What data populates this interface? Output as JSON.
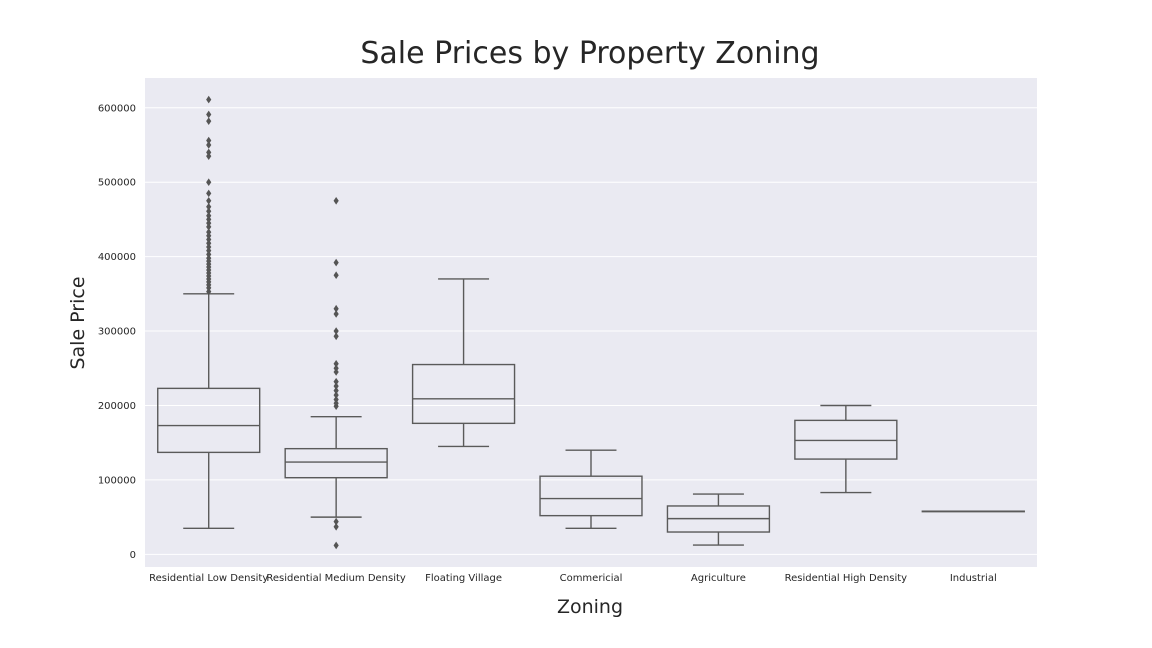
{
  "chart_data": {
    "type": "box",
    "title": "Sale Prices by Property Zoning",
    "xlabel": "Zoning",
    "ylabel": "Sale Price",
    "ylim": [
      -17000,
      640000
    ],
    "yticks": [
      0,
      100000,
      200000,
      300000,
      400000,
      500000,
      600000
    ],
    "grid": true,
    "legend": "none",
    "categories": [
      "Residential Low Density",
      "Residential Medium Density",
      "Floating Village",
      "Commericial",
      "Agriculture",
      "Residential High Density",
      "Industrial"
    ],
    "colors": [
      "#8dcbc0",
      "#f8f8b5",
      "#bfbbd9",
      "#ec8c80",
      "#80b0d0",
      "#f3b470",
      "#b3dd6b"
    ],
    "boxes": [
      {
        "whislo": 35000,
        "q1": 137000,
        "med": 173000,
        "q3": 223000,
        "whishi": 350000,
        "fliers": [
          353000,
          358000,
          362000,
          366000,
          370000,
          374000,
          378000,
          382000,
          386000,
          390000,
          394000,
          398000,
          403000,
          408000,
          413000,
          418000,
          423000,
          428000,
          433000,
          440000,
          445000,
          450000,
          455000,
          461000,
          467000,
          475000,
          485000,
          500000,
          535000,
          540000,
          550000,
          556000,
          582000,
          591000,
          611000
        ]
      },
      {
        "whislo": 50000,
        "q1": 103000,
        "med": 124000,
        "q3": 142000,
        "whishi": 185000,
        "fliers": [
          12000,
          37000,
          44000,
          199000,
          203000,
          208000,
          214000,
          220000,
          226000,
          232000,
          245000,
          250000,
          256000,
          293000,
          300000,
          323000,
          330000,
          375000,
          392000,
          475000
        ]
      },
      {
        "whislo": 145000,
        "q1": 176000,
        "med": 209000,
        "q3": 255000,
        "whishi": 370000,
        "fliers": []
      },
      {
        "whislo": 35000,
        "q1": 52000,
        "med": 75000,
        "q3": 105000,
        "whishi": 140000,
        "fliers": []
      },
      {
        "whislo": 12500,
        "q1": 30000,
        "med": 48000,
        "q3": 65000,
        "whishi": 81000,
        "fliers": []
      },
      {
        "whislo": 83000,
        "q1": 128000,
        "med": 153000,
        "q3": 180000,
        "whishi": 200000,
        "fliers": []
      },
      {
        "whislo": 58000,
        "q1": 58000,
        "med": 58000,
        "q3": 58000,
        "whishi": 58000,
        "fliers": []
      }
    ]
  }
}
